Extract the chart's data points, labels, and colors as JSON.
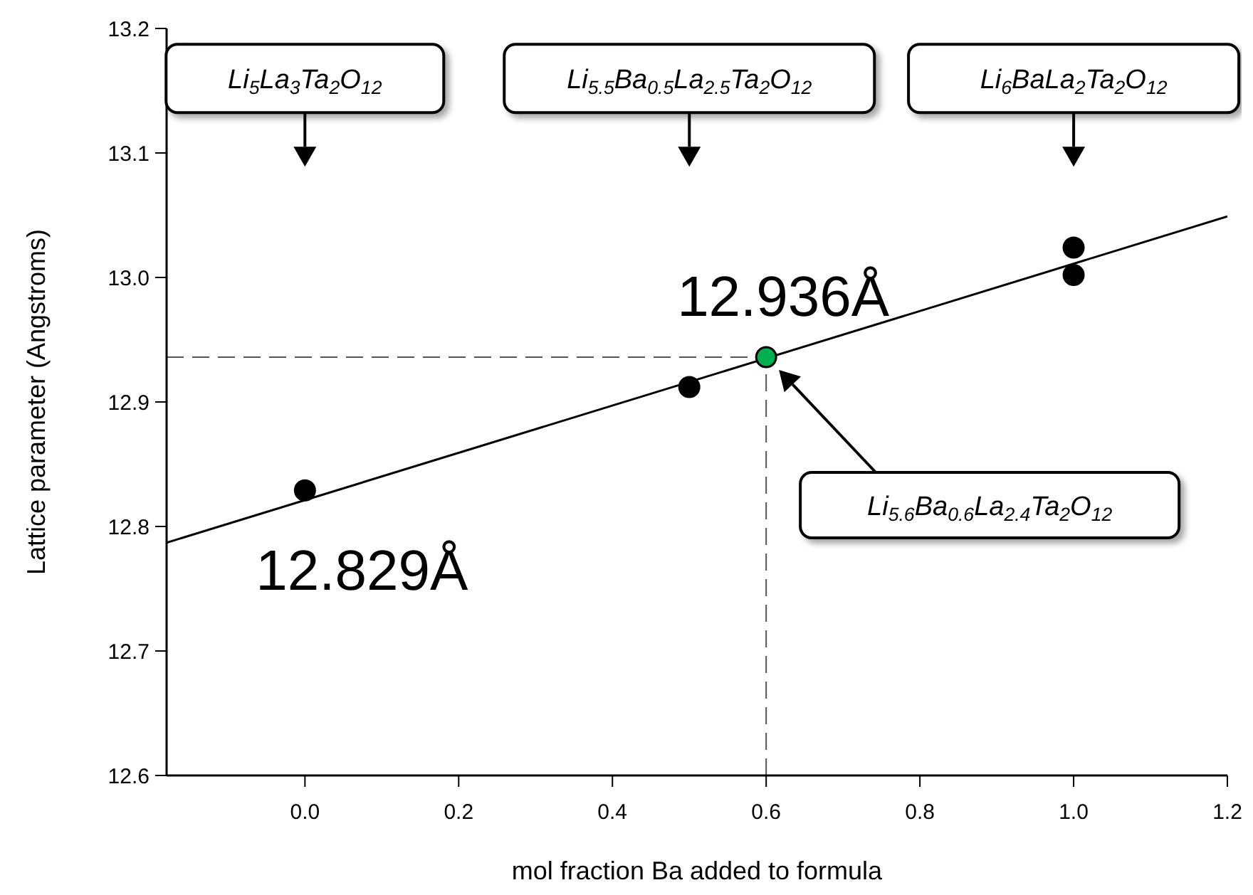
{
  "chart_data": {
    "type": "scatter",
    "xlabel": "mol fraction Ba added to formula",
    "ylabel": "Lattice parameter (Angstroms)",
    "xlim": [
      -0.18,
      1.2
    ],
    "xticks": [
      {
        "value": 0,
        "label": "0.0"
      },
      0.2,
      0.4,
      0.6,
      0.8,
      {
        "value": 1,
        "label": "1.0"
      },
      1.2
    ],
    "ylim": [
      12.6,
      13.2
    ],
    "yticks": [
      12.6,
      12.7,
      12.8,
      12.9,
      {
        "value": 13,
        "label": "13.0"
      },
      13.1,
      13.2
    ],
    "grid": false,
    "legend": false,
    "marker": "circle",
    "series": [
      {
        "type": "scatter",
        "color": "#000000",
        "x": [
          0,
          0.5,
          1,
          1
        ],
        "values": [
          12.829,
          12.912,
          13.024,
          13.002
        ]
      },
      {
        "type": "scatter",
        "color": "#00b050",
        "x": [
          0.6
        ],
        "values": [
          12.936
        ]
      },
      {
        "type": "line",
        "color": "#000000",
        "marker": "none",
        "x": [
          -0.18,
          1.2
        ],
        "values": [
          12.787,
          13.049
        ]
      }
    ],
    "ref_lines": [
      {
        "axis": "y",
        "value": 12.936,
        "line_style": "dashed",
        "color": "#555555"
      },
      {
        "axis": "x",
        "value": 0.6,
        "line_style": "dashed",
        "color": "#555555"
      }
    ],
    "annotations": [
      "Li$_{5}$La$_{3}$Ta$_{2}$O$_{12}$",
      "Li$_{5.5}$Ba$_{0.5}$La$_{2.5}$Ta$_{2}$O$_{12}$",
      "Li$_{6}$BaLa$_{2}$Ta$_{2}$O$_{12}$",
      "Li$_{5.6}$Ba$_{0.6}$La$_{2.4}$Ta$_{2}$O$_{12}$",
      {
        "text": "12.936Å",
        "x": 0.6,
        "y": 12.936
      },
      {
        "text": "12.829Å",
        "x": 0,
        "y": 12.829
      }
    ]
  }
}
